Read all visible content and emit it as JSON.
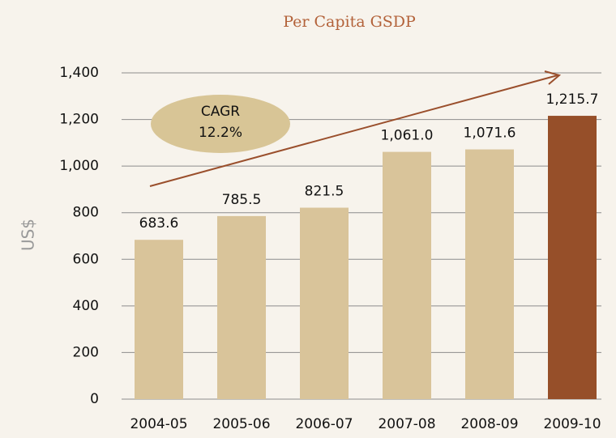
{
  "chart_data": {
    "type": "bar",
    "title": "Per Capita GSDP",
    "y_label": "US$",
    "categories": [
      "2004-05",
      "2005-06",
      "2006-07",
      "2007-08",
      "2008-09",
      "2009-10"
    ],
    "values": [
      683.6,
      785.5,
      821.5,
      1061.0,
      1071.6,
      1215.7
    ],
    "value_labels": [
      "683.6",
      "785.5",
      "821.5",
      "1,061.0",
      "1,071.6",
      "1,215.7"
    ],
    "colors": [
      "#d9c49a",
      "#d9c49a",
      "#d9c49a",
      "#d9c49a",
      "#d9c49a",
      "#964f29"
    ],
    "ylim": [
      0,
      1400
    ],
    "yticks": [
      0,
      200,
      400,
      600,
      800,
      {
        "value": 1000,
        "label": "1,000"
      },
      {
        "value": 1200,
        "label": "1,200"
      },
      {
        "value": 1400,
        "label": "1,400"
      }
    ],
    "grid": true,
    "annotation": {
      "lines": [
        "CAGR",
        "12.2%"
      ]
    }
  }
}
